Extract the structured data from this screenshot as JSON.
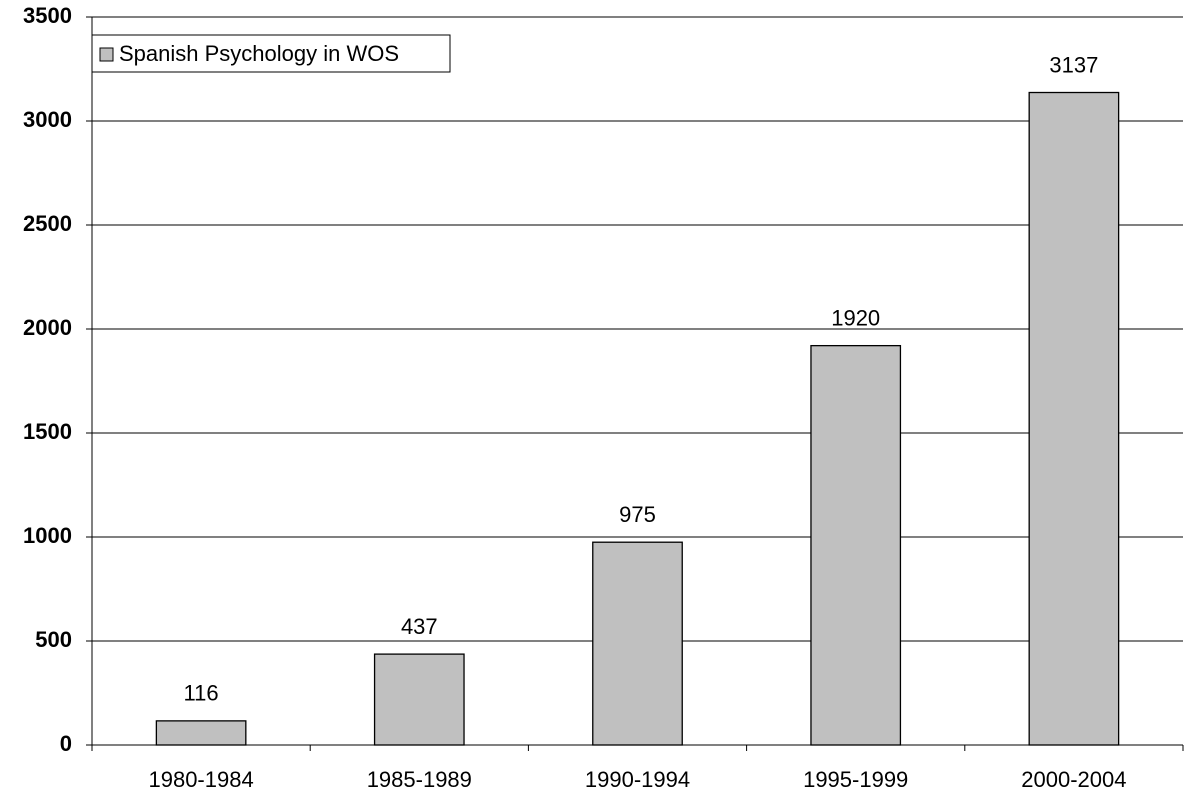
{
  "chart_data": {
    "type": "bar",
    "categories": [
      "1980-1984",
      "1985-1989",
      "1990-1994",
      "1995-1999",
      "2000-2004"
    ],
    "series": [
      {
        "name": "Spanish Psychology in WOS",
        "color": "#c0c0c0",
        "values": [
          116,
          437,
          975,
          1920,
          3137
        ]
      }
    ],
    "ylim": [
      0,
      3500
    ],
    "yticks": [
      0,
      500,
      1000,
      1500,
      2000,
      2500,
      3000,
      3500
    ],
    "grid": true,
    "legend": "upper left"
  }
}
